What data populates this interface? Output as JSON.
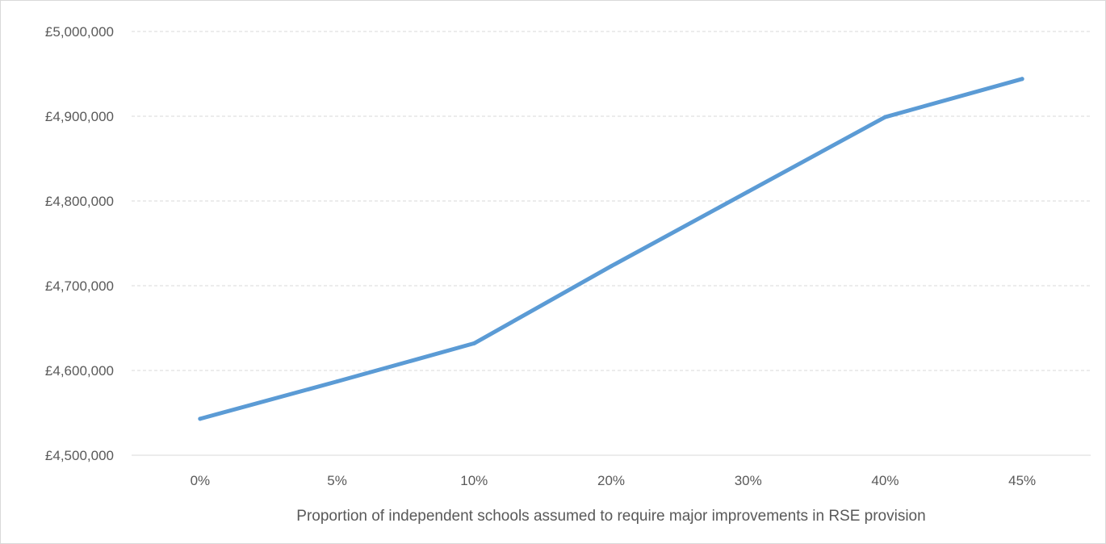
{
  "chart_data": {
    "type": "line",
    "title": "",
    "xlabel": "Proportion of independent schools assumed to require major improvements in RSE provision",
    "ylabel": "",
    "categories": [
      "0%",
      "5%",
      "10%",
      "20%",
      "30%",
      "40%",
      "45%"
    ],
    "series": [
      {
        "values": [
          4543000,
          4587000,
          4632000,
          4723000,
          4811000,
          4899000,
          4944000
        ]
      }
    ],
    "ylim": [
      4500000,
      5000000
    ],
    "yticks": [
      4500000,
      4600000,
      4700000,
      4800000,
      4900000,
      5000000
    ],
    "ytick_labels": [
      "£4,500,000",
      "£4,600,000",
      "£4,700,000",
      "£4,800,000",
      "£4,900,000",
      "£5,000,000"
    ],
    "grid": "horizontal-dashed",
    "legend": "none",
    "colors": {
      "line": "#5b9bd5",
      "grid": "#d9d9d9",
      "axis": "#d9d9d9",
      "text": "#595959"
    }
  }
}
